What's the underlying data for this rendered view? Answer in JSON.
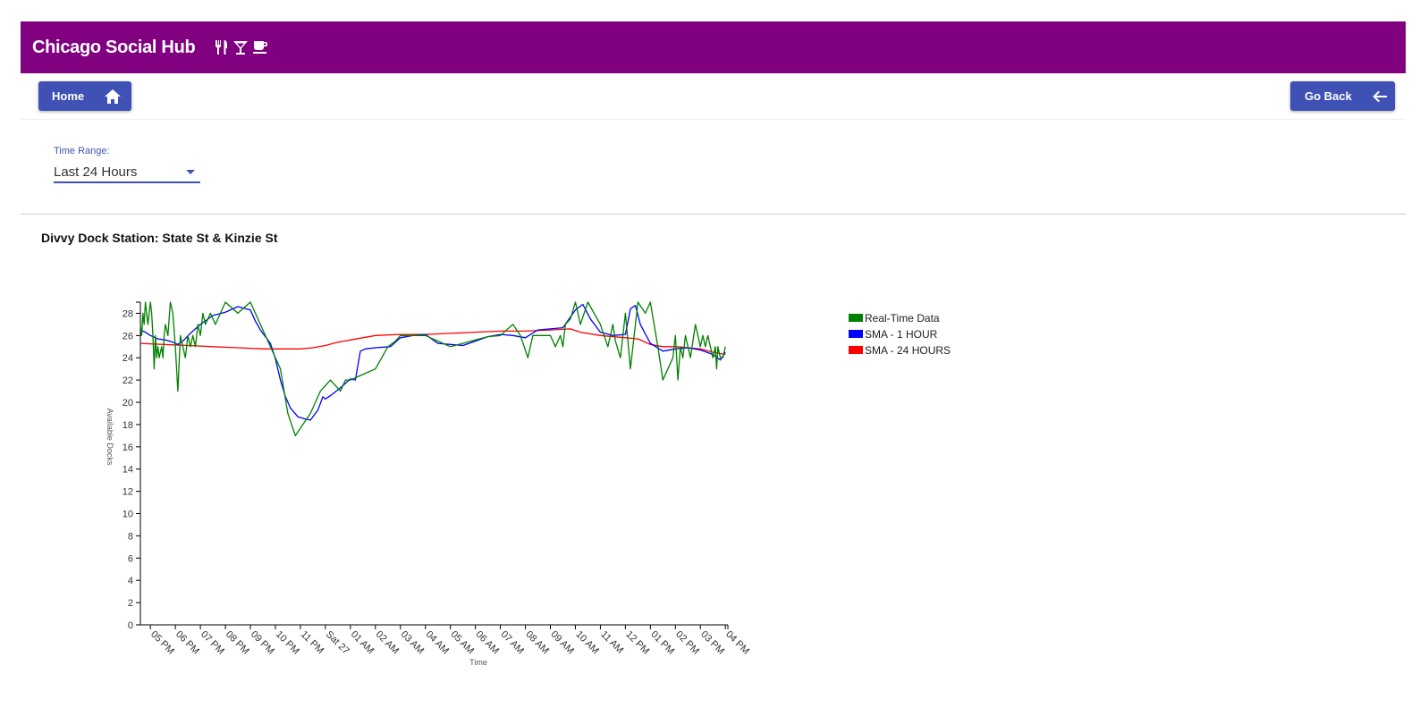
{
  "app": {
    "title": "Chicago Social Hub",
    "icons": [
      "restaurant-icon",
      "cocktail-icon",
      "coffee-icon"
    ],
    "brand_color": "#800080",
    "accent_color": "#3f51b5"
  },
  "nav": {
    "home_label": "Home",
    "back_label": "Go Back"
  },
  "filter": {
    "label": "Time Range:",
    "value": "Last 24 Hours"
  },
  "station": {
    "title": "Divvy Dock Station: State St & Kinzie St"
  },
  "chart_data": {
    "type": "line",
    "xlabel": "Time",
    "ylabel": "Available Docks",
    "ylim": [
      0,
      29
    ],
    "yticks": [
      0,
      2,
      4,
      6,
      8,
      10,
      12,
      14,
      16,
      18,
      20,
      22,
      24,
      26,
      28
    ],
    "xlim": [
      4.6,
      28.1
    ],
    "xtick_labels": [
      "05 PM",
      "06 PM",
      "07 PM",
      "08 PM",
      "09 PM",
      "10 PM",
      "11 PM",
      "Sat 27",
      "01 AM",
      "02 AM",
      "03 AM",
      "04 AM",
      "05 AM",
      "06 AM",
      "07 AM",
      "08 AM",
      "09 AM",
      "10 AM",
      "11 AM",
      "12 PM",
      "01 PM",
      "02 PM",
      "03 PM",
      "04 PM"
    ],
    "xtick_hours": [
      5,
      6,
      7,
      8,
      9,
      10,
      11,
      12,
      13,
      14,
      15,
      16,
      17,
      18,
      19,
      20,
      21,
      22,
      23,
      24,
      25,
      26,
      27,
      28
    ],
    "legend_position": "right",
    "series": [
      {
        "name": "Real-Time Data",
        "color": "#008000",
        "x": [
          4.6,
          4.65,
          4.7,
          4.75,
          4.8,
          4.9,
          5.0,
          5.05,
          5.1,
          5.15,
          5.2,
          5.25,
          5.3,
          5.35,
          5.45,
          5.5,
          5.55,
          5.6,
          5.7,
          5.8,
          5.9,
          6.0,
          6.1,
          6.2,
          6.3,
          6.4,
          6.5,
          6.6,
          6.7,
          6.8,
          6.9,
          7.0,
          7.1,
          7.2,
          7.4,
          7.6,
          7.8,
          8.0,
          8.5,
          9.0,
          9.2,
          9.4,
          9.8,
          10.2,
          10.5,
          10.8,
          11.1,
          11.4,
          11.8,
          12.2,
          12.6,
          12.8,
          13.0,
          13.5,
          14.0,
          14.5,
          14.8,
          15.0,
          15.5,
          16.0,
          16.5,
          17.0,
          17.5,
          18.0,
          18.5,
          19.0,
          19.5,
          19.8,
          20.1,
          20.3,
          20.5,
          21.0,
          21.2,
          21.4,
          21.5,
          21.6,
          21.8,
          22.0,
          22.1,
          22.2,
          22.5,
          23.0,
          23.3,
          23.5,
          23.6,
          23.8,
          24.0,
          24.2,
          24.5,
          24.8,
          25.0,
          25.3,
          25.5,
          25.7,
          25.9,
          26.0,
          26.1,
          26.2,
          26.3,
          26.4,
          26.6,
          26.8,
          27.0,
          27.1,
          27.2,
          27.3,
          27.4,
          27.5,
          27.6,
          27.65,
          27.7,
          27.8,
          27.9,
          28.0
        ],
        "y": [
          27,
          26,
          28,
          27,
          29,
          27,
          29,
          28,
          26,
          23,
          26,
          24,
          25,
          24,
          25,
          24,
          26,
          27,
          26,
          29,
          28,
          25,
          21,
          26,
          25,
          24,
          26,
          25,
          26,
          25,
          27,
          26,
          28,
          27,
          28,
          27,
          28,
          29,
          28,
          29,
          28,
          27,
          25,
          23,
          19,
          17,
          18,
          19,
          21,
          22,
          21,
          22,
          22,
          22.5,
          23,
          25,
          25.5,
          26,
          26,
          26,
          25.5,
          25,
          25.3,
          25.6,
          25.9,
          26,
          27,
          26,
          24,
          26,
          26,
          26,
          25,
          26,
          25,
          27,
          27.5,
          29,
          28,
          27,
          29,
          27,
          25,
          27,
          25.5,
          24,
          28,
          23,
          29,
          28,
          29,
          25,
          22,
          23,
          24,
          26,
          22,
          25,
          24,
          26,
          24,
          27,
          25,
          26,
          25,
          26,
          25,
          24,
          25,
          23,
          25,
          24,
          24,
          25
        ]
      },
      {
        "name": "SMA - 1 HOUR",
        "color": "#0000ff",
        "x": [
          4.6,
          4.8,
          5.0,
          5.3,
          5.6,
          5.9,
          6.1,
          6.3,
          6.6,
          7.0,
          7.5,
          8.0,
          8.5,
          9.0,
          9.2,
          9.4,
          9.6,
          9.8,
          10.0,
          10.2,
          10.4,
          10.6,
          10.9,
          11.2,
          11.4,
          11.6,
          11.7,
          11.9,
          12.0,
          12.2,
          12.6,
          13.0,
          13.2,
          13.4,
          13.6,
          14.0,
          14.6,
          15.0,
          15.5,
          16.0,
          16.5,
          17.0,
          17.5,
          18.0,
          18.5,
          19.0,
          19.5,
          20.0,
          20.5,
          21.0,
          21.5,
          22.0,
          22.3,
          22.6,
          23.0,
          23.5,
          24.0,
          24.2,
          24.4,
          24.6,
          25.0,
          25.5,
          26.0,
          26.5,
          27.0,
          27.5,
          27.8,
          28.0
        ],
        "y": [
          26.5,
          26.3,
          26,
          25.7,
          25.6,
          25.4,
          25.2,
          25.5,
          26.2,
          27,
          27.8,
          28.1,
          28.6,
          28.3,
          27.3,
          26.5,
          25.9,
          25.3,
          23.9,
          22,
          20.5,
          19.5,
          18.7,
          18.5,
          18.4,
          19,
          19.3,
          20.5,
          20.3,
          20.6,
          21.3,
          22.1,
          22,
          24.6,
          24.8,
          24.9,
          25,
          25.8,
          26,
          26.1,
          25.3,
          25.2,
          25.1,
          25.5,
          25.9,
          26.1,
          26,
          25.8,
          26.5,
          26.6,
          26.7,
          28.3,
          28.8,
          27.5,
          26.3,
          26,
          26.1,
          28.4,
          28.7,
          27,
          25.3,
          24.6,
          24.8,
          24.9,
          24.7,
          24.3,
          23.8,
          24.5
        ]
      },
      {
        "name": "SMA - 24 HOURS",
        "color": "#ff0000",
        "x": [
          4.6,
          5.5,
          6.5,
          7.5,
          8.5,
          9.5,
          10.5,
          11.0,
          11.5,
          12.0,
          12.5,
          13.0,
          13.5,
          14.0,
          15.0,
          16.0,
          17.0,
          18.0,
          19.0,
          20.0,
          21.0,
          21.8,
          22.2,
          23.0,
          24.0,
          24.5,
          25.0,
          25.5,
          26.0,
          26.5,
          27.0,
          27.5,
          28.0
        ],
        "y": [
          25.3,
          25.2,
          25.1,
          25.0,
          24.9,
          24.8,
          24.8,
          24.8,
          24.9,
          25.1,
          25.4,
          25.6,
          25.8,
          26.0,
          26.1,
          26.1,
          26.2,
          26.3,
          26.4,
          26.4,
          26.5,
          26.6,
          26.3,
          26.0,
          25.8,
          25.7,
          25.2,
          25.0,
          25.0,
          24.9,
          24.8,
          24.5,
          24.3
        ]
      }
    ]
  }
}
